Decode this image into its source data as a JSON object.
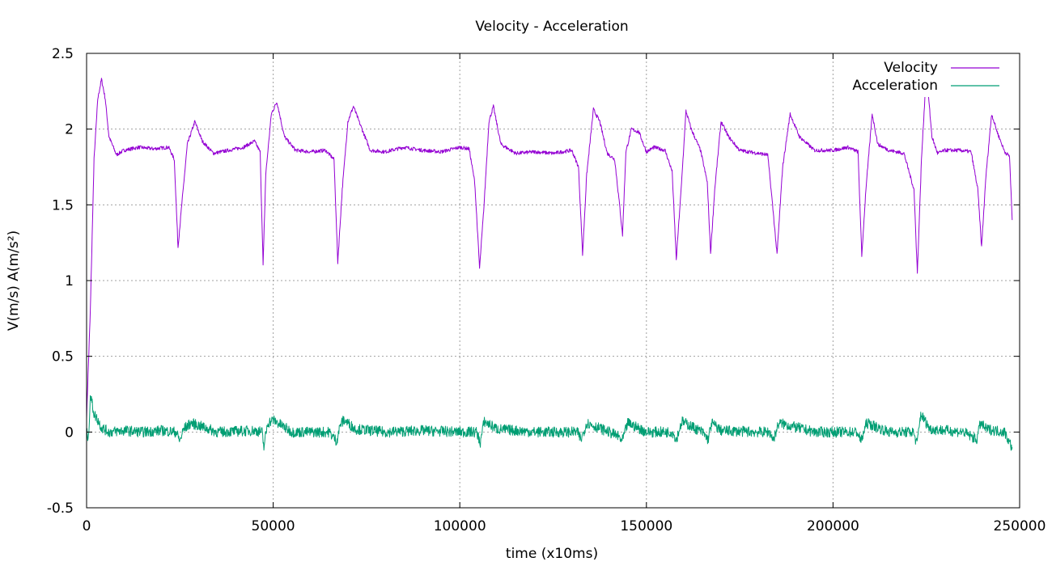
{
  "chart_data": {
    "type": "line",
    "title": "Velocity - Acceleration",
    "xlabel": "time (x10ms)",
    "ylabel": "V(m/s) A(m/s²)",
    "xlim": [
      0,
      250000
    ],
    "ylim": [
      -0.5,
      2.5
    ],
    "x_ticks": [
      0,
      50000,
      100000,
      150000,
      200000,
      250000
    ],
    "x_tick_labels": [
      "0",
      "50000",
      "100000",
      "150000",
      "200000",
      "250000"
    ],
    "y_ticks": [
      -0.5,
      0,
      0.5,
      1,
      1.5,
      2,
      2.5
    ],
    "y_tick_labels": [
      "-0.5",
      "0",
      "0.5",
      "1",
      "1.5",
      "2",
      "2.5"
    ],
    "grid": true,
    "legend_position": "top-right",
    "series": [
      {
        "name": "Velocity",
        "color": "#9400d3",
        "x": [
          0,
          1000,
          2000,
          3000,
          4000,
          5000,
          6000,
          8000,
          10000,
          14000,
          18000,
          22000,
          23500,
          24500,
          25500,
          27000,
          29000,
          31000,
          34000,
          38000,
          42000,
          45000,
          46500,
          47300,
          48000,
          49500,
          51000,
          53000,
          56000,
          60000,
          64000,
          66300,
          67300,
          68500,
          70000,
          71500,
          73000,
          76000,
          80000,
          85000,
          90000,
          95000,
          100000,
          102500,
          104000,
          105300,
          106500,
          107800,
          109000,
          111000,
          115000,
          120000,
          125000,
          130000,
          131800,
          132900,
          134000,
          135800,
          137500,
          139500,
          141500,
          142800,
          143600,
          144500,
          146000,
          148000,
          150000,
          152000,
          155000,
          156900,
          158000,
          159300,
          160600,
          162000,
          164500,
          166300,
          167200,
          168300,
          170000,
          172000,
          175000,
          180000,
          182500,
          183800,
          185000,
          186500,
          188500,
          191000,
          195000,
          200000,
          204000,
          206700,
          207700,
          208800,
          210500,
          212000,
          215000,
          219000,
          221700,
          222600,
          223700,
          225000,
          226500,
          228000,
          230000,
          234000,
          237000,
          238800,
          239800,
          241000,
          242500,
          244000,
          246000,
          247300,
          248000
        ],
        "y": [
          0.1,
          0.8,
          1.8,
          2.2,
          2.33,
          2.2,
          1.95,
          1.83,
          1.86,
          1.88,
          1.87,
          1.88,
          1.8,
          1.22,
          1.5,
          1.9,
          2.05,
          1.92,
          1.84,
          1.86,
          1.88,
          1.92,
          1.85,
          1.1,
          1.7,
          2.1,
          2.18,
          1.95,
          1.86,
          1.85,
          1.86,
          1.8,
          1.12,
          1.6,
          2.05,
          2.15,
          2.05,
          1.86,
          1.85,
          1.88,
          1.86,
          1.85,
          1.88,
          1.87,
          1.65,
          1.08,
          1.5,
          2.05,
          2.15,
          1.9,
          1.84,
          1.85,
          1.84,
          1.86,
          1.75,
          1.17,
          1.7,
          2.13,
          2.05,
          1.84,
          1.8,
          1.5,
          1.3,
          1.85,
          2.0,
          1.98,
          1.85,
          1.88,
          1.86,
          1.72,
          1.14,
          1.6,
          2.12,
          2.0,
          1.86,
          1.65,
          1.18,
          1.6,
          2.05,
          1.95,
          1.86,
          1.84,
          1.83,
          1.5,
          1.17,
          1.75,
          2.1,
          1.95,
          1.86,
          1.86,
          1.88,
          1.85,
          1.16,
          1.6,
          2.1,
          1.9,
          1.86,
          1.84,
          1.6,
          1.05,
          1.8,
          2.38,
          1.95,
          1.84,
          1.86,
          1.86,
          1.85,
          1.6,
          1.22,
          1.7,
          2.1,
          1.98,
          1.85,
          1.82,
          1.4
        ]
      },
      {
        "name": "Acceleration",
        "color": "#009e73",
        "x": [
          0,
          500,
          1000,
          2000,
          3000,
          4000,
          6000,
          10000,
          15000,
          20000,
          24000,
          25000,
          26000,
          28000,
          35000,
          45000,
          47000,
          47500,
          48500,
          50000,
          55000,
          65000,
          67000,
          68000,
          69000,
          72000,
          80000,
          90000,
          100000,
          104500,
          105500,
          106500,
          110000,
          120000,
          131500,
          132500,
          134000,
          140000,
          142500,
          143500,
          145000,
          150000,
          157000,
          158000,
          159500,
          165000,
          166500,
          167500,
          170000,
          180000,
          183000,
          184000,
          185500,
          195000,
          206500,
          207500,
          209000,
          215000,
          221500,
          222500,
          223500,
          226000,
          235000,
          238500,
          239500,
          241000,
          246000,
          247500,
          248000
        ],
        "y": [
          0.0,
          -0.05,
          0.25,
          0.12,
          0.08,
          0.03,
          0.0,
          0.01,
          0.0,
          0.01,
          0.0,
          -0.06,
          0.02,
          0.06,
          0.0,
          0.01,
          0.0,
          -0.1,
          0.06,
          0.08,
          0.0,
          0.0,
          -0.06,
          0.05,
          0.08,
          0.02,
          0.0,
          0.01,
          0.0,
          0.0,
          -0.07,
          0.07,
          0.02,
          0.0,
          0.0,
          -0.05,
          0.06,
          0.0,
          -0.03,
          -0.06,
          0.06,
          0.0,
          0.0,
          -0.05,
          0.07,
          0.0,
          -0.05,
          0.06,
          0.01,
          0.0,
          0.0,
          -0.05,
          0.06,
          0.0,
          0.0,
          -0.06,
          0.06,
          0.0,
          0.0,
          -0.08,
          0.12,
          0.02,
          0.0,
          -0.05,
          0.06,
          0.02,
          0.0,
          -0.08,
          -0.1
        ]
      }
    ]
  }
}
